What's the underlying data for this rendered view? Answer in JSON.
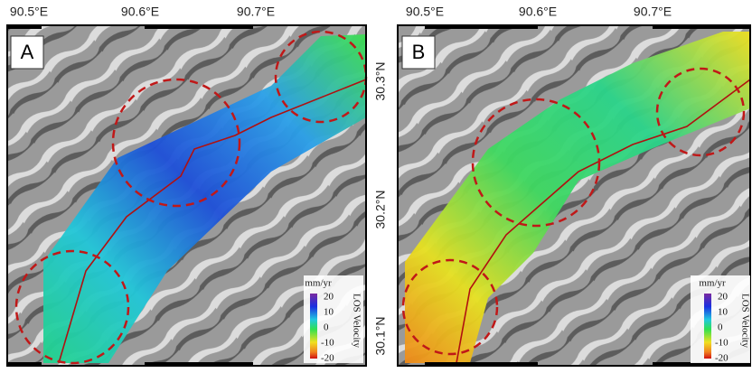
{
  "panels": [
    {
      "label": "A",
      "lon_ticks": [
        "90.5°E",
        "90.6°E",
        "90.7°E"
      ],
      "colorbar": {
        "unit": "mm/yr",
        "ticks": [
          "20",
          "10",
          "0",
          "-10",
          "-20"
        ],
        "title": "LOS Velocity"
      }
    },
    {
      "label": "B",
      "lon_ticks": [
        "90.5°E",
        "90.6°E",
        "90.7°E"
      ],
      "colorbar": {
        "unit": "mm/yr",
        "ticks": [
          "20",
          "10",
          "0",
          "-10",
          "-20"
        ],
        "title": "LOS Velocity"
      }
    }
  ],
  "lat_ticks": [
    "30.3°N",
    "30.2°N",
    "30.1°N"
  ]
}
